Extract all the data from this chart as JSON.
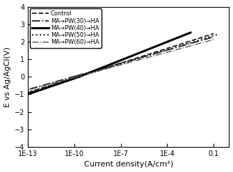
{
  "xlabel": "Current density(A/cm²)",
  "ylabel": "E vs Ag/AgCl(V)",
  "ylim": [
    -4,
    4
  ],
  "yticks": [
    -4,
    -3,
    -2,
    -1,
    0,
    1,
    2,
    3,
    4
  ],
  "xticks": [
    1e-13,
    1e-10,
    1e-07,
    0.0001,
    0.1
  ],
  "xtick_labels": [
    "1E-13",
    "1E-10",
    "1E-7",
    "1E-4",
    "0.1"
  ],
  "legend_entries": [
    {
      "label": "Control",
      "ls": "--",
      "lw": 1.3,
      "color": "#222222",
      "dashes": [
        5,
        3
      ]
    },
    {
      "label": "MA→PW(30)→HA",
      "ls": "-.",
      "lw": 1.3,
      "color": "#222222",
      "dashes": [
        5,
        2,
        1,
        2
      ]
    },
    {
      "label": "MA→PW(40)→HA",
      "ls": "-",
      "lw": 2.2,
      "color": "#000000",
      "dashes": []
    },
    {
      "label": "MA→PW(50)→HA",
      "ls": ":",
      "lw": 1.4,
      "color": "#222222",
      "dashes": [
        1,
        2
      ]
    },
    {
      "label": "MA→PW(60)→HA",
      "ls": "-.",
      "lw": 1.1,
      "color": "#444444",
      "dashes": [
        5,
        2,
        1,
        2,
        1,
        2
      ]
    }
  ],
  "legend_fontsize": 6.0,
  "axis_fontsize": 8,
  "tick_fontsize": 7
}
